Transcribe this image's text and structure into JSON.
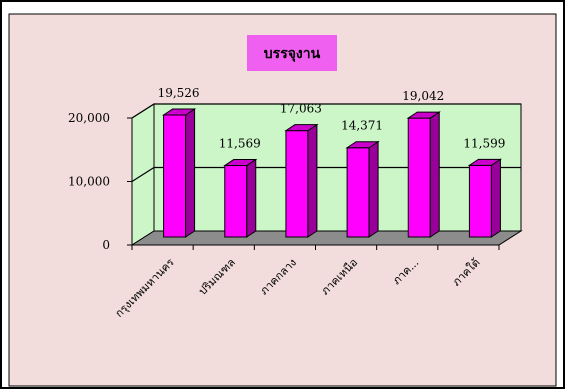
{
  "colors": {
    "chart_area": "#f2dcdc",
    "plot_wall": "#ccf5c8",
    "plot_floor": "#8c8c8c",
    "bar_front": "#ff00ff",
    "bar_side": "#990099",
    "bar_top": "#cc00cc",
    "title_bg": "#f060f0",
    "frame_border": "#000000"
  },
  "chart_data": {
    "type": "bar",
    "title": "บรรจุงาน",
    "categories": [
      "กรุงเทพมหานคร",
      "ปริมณฑล",
      "ภาคกลาง",
      "ภาคเหนือ",
      "ภาค...",
      "ภาคใต้"
    ],
    "values": [
      19526,
      11569,
      17063,
      14371,
      19042,
      11599
    ],
    "value_labels": [
      "19,526",
      "11,569",
      "17,063",
      "14,371",
      "19,042",
      "11,599"
    ],
    "ylim": [
      0,
      20000
    ],
    "y_ticks": [
      0,
      10000,
      20000
    ],
    "y_tick_labels": [
      "0",
      "10,000",
      "20,000"
    ],
    "grid": true,
    "legend": "none",
    "style": "3d"
  }
}
